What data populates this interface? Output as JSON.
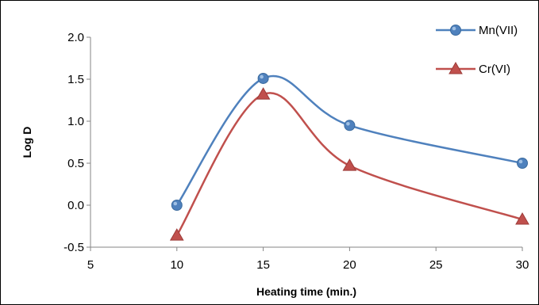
{
  "chart_data": {
    "type": "line",
    "title": "",
    "xlabel": "Heating time (min.)",
    "ylabel": "Log D",
    "xlim": [
      5,
      30
    ],
    "ylim": [
      -0.5,
      2.0
    ],
    "xticks": [
      5,
      10,
      15,
      20,
      25,
      30
    ],
    "xtick_labels": [
      "5",
      "10",
      "15",
      "20",
      "25",
      "30"
    ],
    "yticks": [
      -0.5,
      0.0,
      0.5,
      1.0,
      1.5,
      2.0
    ],
    "ytick_labels": [
      "-0.5",
      "0.0",
      "0.5",
      "1.0",
      "1.5",
      "2.0"
    ],
    "grid": false,
    "smooth": true,
    "legend_position": "top-right",
    "series": [
      {
        "name": "Mn(VII)",
        "color": "#4F81BD",
        "marker": "circle",
        "x": [
          10,
          15,
          20,
          30
        ],
        "y": [
          0.0,
          1.51,
          0.95,
          0.5
        ]
      },
      {
        "name": "Cr(VI)",
        "color": "#C0504D",
        "marker": "triangle",
        "x": [
          10,
          15,
          20,
          30
        ],
        "y": [
          -0.36,
          1.32,
          0.47,
          -0.17
        ]
      }
    ]
  }
}
